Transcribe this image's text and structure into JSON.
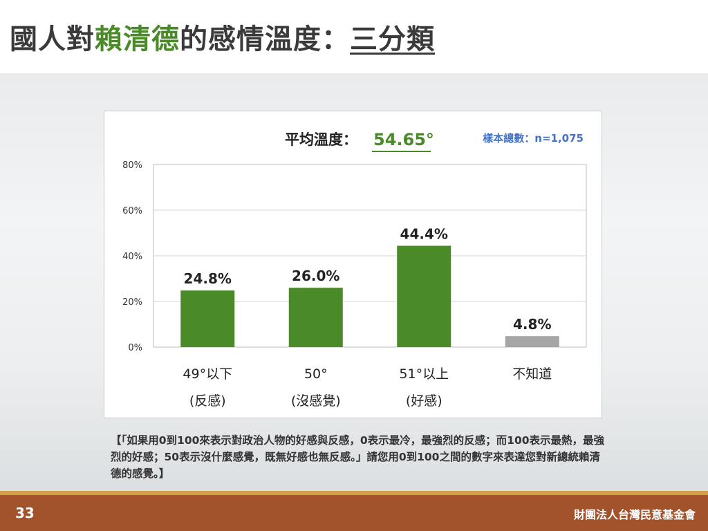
{
  "title": {
    "prefix": "國人對",
    "highlight": "賴清德",
    "middle": "的感情溫度：",
    "underlined": "三分類"
  },
  "chart_data": {
    "type": "bar",
    "avg_label": "平均溫度：",
    "avg_value": "54.65°",
    "sample_label": "樣本總數：n=1,075",
    "categories": [
      {
        "line1": "49°以下",
        "line2": "(反感)"
      },
      {
        "line1": "50°",
        "line2": "(沒感覺)"
      },
      {
        "line1": "51°以上",
        "line2": "(好感)"
      },
      {
        "line1": "不知道",
        "line2": ""
      }
    ],
    "values": [
      24.8,
      26.0,
      44.4,
      4.8
    ],
    "value_labels": [
      "24.8%",
      "26.0%",
      "44.4%",
      "4.8%"
    ],
    "bar_colors": [
      "#4a8a28",
      "#4a8a28",
      "#4a8a28",
      "#a6a6a6"
    ],
    "yticks": [
      0,
      20,
      40,
      60,
      80
    ],
    "ytick_labels": [
      "0%",
      "20%",
      "40%",
      "60%",
      "80%"
    ],
    "ylim": [
      0,
      80
    ],
    "grid": true,
    "accent_color": "#4a8a28",
    "sample_color": "#4472c4"
  },
  "question_text": "【「如果用0到100來表示對政治人物的好感與反感，0表示最冷，最強烈的反感；而100表示最熱，最強烈的好感；50表示沒什麼感覺，既無好感也無反感。」請您用0到100之間的數字來表達您對新總統賴清德的感覺。】",
  "footer": {
    "page_number": "33",
    "organization": "財團法人台灣民意基金會"
  }
}
